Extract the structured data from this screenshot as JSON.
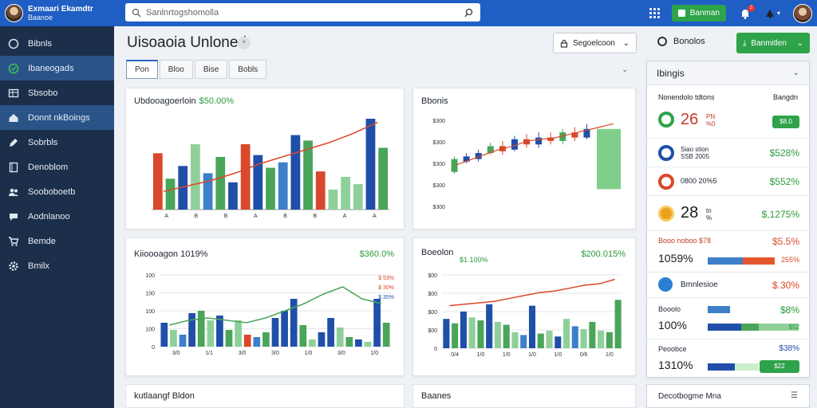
{
  "colors": {
    "blue": "#1f4fa8",
    "green": "#4aa55a",
    "light_green": "#8fd09a",
    "red": "#d9482b",
    "mid_blue": "#3d7fc9",
    "accent": "#2ea34a"
  },
  "header": {
    "brand_name": "Exmaari Ekamdtr",
    "brand_sub": "Baanoe",
    "search_placeholder": "Sanlnrtogshomolla",
    "action_button": "Banman",
    "notification_count": "2",
    "icons": [
      "search-icon",
      "apps-grid-icon",
      "bell-icon",
      "moon-icon"
    ]
  },
  "sidebar": {
    "items": [
      {
        "label": "Bibnls",
        "icon": "circle-icon"
      },
      {
        "label": "Ibaneogads",
        "icon": "check-circle-icon"
      },
      {
        "label": "Sbsobo",
        "icon": "table-icon"
      },
      {
        "label": "Donnt nkBoings",
        "icon": "home-icon"
      },
      {
        "label": "Sobrbls",
        "icon": "pen-icon"
      },
      {
        "label": "Denoblom",
        "icon": "book-icon"
      },
      {
        "label": "Sooboboetb",
        "icon": "users-icon"
      },
      {
        "label": "Aodnlanoo",
        "icon": "chat-icon"
      },
      {
        "label": "Bemde",
        "icon": "cart-icon"
      },
      {
        "label": "Bmilx",
        "icon": "gear-icon"
      }
    ]
  },
  "page": {
    "title": "Uisoaoia Unloned",
    "info_badge": "*",
    "segment_dropdown": "Segoelcoon",
    "export_label": "Bonolos",
    "primary_button": "Banmitlen",
    "tabs": [
      "Pon",
      "Bloo",
      "Bise",
      "Bobls"
    ]
  },
  "cards": {
    "c1": {
      "title": "Ubdooagoerloin",
      "pct": "$50.00%"
    },
    "c2": {
      "title": "Bbonis"
    },
    "c3": {
      "title": "Kiioooagon 1019%",
      "kpi": "$360.0%",
      "legend": [
        "$ 53%",
        "$ 30%",
        "$ 35%"
      ]
    },
    "c4": {
      "title": "Boeolon",
      "subtitle": "$1 100%",
      "kpi": "$200.015%"
    },
    "c5": {
      "title": "kutlaangf Bldon"
    },
    "c6": {
      "title": "Baanes"
    }
  },
  "chart_data": [
    {
      "type": "bar",
      "title": "Ubdooagoerloin",
      "x_tick_labels": [
        "A",
        "B",
        "B",
        "A",
        "B",
        "B",
        "A",
        "A"
      ],
      "series": [
        {
          "values": [
            62,
            34,
            48,
            72,
            40,
            58,
            30,
            72,
            60,
            46,
            52,
            82,
            76,
            42,
            22,
            36,
            28,
            100,
            68
          ]
        }
      ],
      "colors": [
        "#d9482b",
        "#4aa55a",
        "#1f4fa8",
        "#8fd09a",
        "#3d7fc9",
        "#4aa55a",
        "#1f4fa8",
        "#d9482b",
        "#1f4fa8",
        "#4aa55a",
        "#3d7fc9",
        "#1f4fa8",
        "#4aa55a",
        "#d9482b",
        "#8fd09a",
        "#8fd09a",
        "#8fd09a",
        "#1f4fa8",
        "#4aa55a"
      ],
      "line": [
        20,
        26,
        32,
        40,
        50,
        58,
        66,
        74,
        84,
        96
      ],
      "ylim": [
        0,
        100
      ]
    },
    {
      "type": "candlestick",
      "title": "Bbonis",
      "y_tick_labels": [
        "$300",
        "$300",
        "$300",
        "$300",
        "$300"
      ],
      "candles": [
        {
          "o": 40,
          "c": 55,
          "h": 58,
          "l": 38
        },
        {
          "o": 52,
          "c": 58,
          "h": 62,
          "l": 50
        },
        {
          "o": 55,
          "c": 62,
          "h": 66,
          "l": 52
        },
        {
          "o": 62,
          "c": 70,
          "h": 74,
          "l": 60
        },
        {
          "o": 70,
          "c": 64,
          "h": 76,
          "l": 60
        },
        {
          "o": 66,
          "c": 78,
          "h": 82,
          "l": 64
        },
        {
          "o": 78,
          "c": 72,
          "h": 84,
          "l": 68
        },
        {
          "o": 72,
          "c": 80,
          "h": 86,
          "l": 68
        },
        {
          "o": 80,
          "c": 76,
          "h": 86,
          "l": 72
        },
        {
          "o": 76,
          "c": 86,
          "h": 90,
          "l": 72
        },
        {
          "o": 86,
          "c": 80,
          "h": 92,
          "l": 76
        },
        {
          "o": 80,
          "c": 90,
          "h": 96,
          "l": 78
        }
      ],
      "line": [
        48,
        54,
        60,
        66,
        70,
        76,
        78,
        80,
        84,
        88,
        92,
        96
      ],
      "big_green_bar": {
        "from": 20,
        "to": 90
      }
    },
    {
      "type": "bar",
      "title": "Kiioooagon 1019%",
      "y_tick_labels": [
        "100",
        "100",
        "100",
        "100",
        "0"
      ],
      "x_tick_labels": [
        "3/0",
        "1/1",
        "3/0",
        "3/0",
        "1/0",
        "3/0",
        "1/0"
      ],
      "series": [
        {
          "values": [
            20,
            14,
            10,
            28,
            30,
            22,
            26,
            14,
            22,
            10,
            8,
            12,
            24,
            30,
            40,
            18,
            6,
            12,
            24,
            16,
            8,
            6,
            4,
            40,
            20
          ]
        }
      ],
      "colors": [
        "#1f4fa8",
        "#8fd09a",
        "#3d7fc9",
        "#1f4fa8",
        "#4aa55a",
        "#8fd09a",
        "#1f4fa8",
        "#4aa55a",
        "#8fd09a",
        "#d9482b",
        "#3d7fc9",
        "#4aa55a",
        "#1f4fa8",
        "#1f4fa8",
        "#1f4fa8",
        "#4aa55a",
        "#8fd09a",
        "#1f4fa8",
        "#1f4fa8",
        "#8fd09a",
        "#4aa55a",
        "#1f4fa8",
        "#8fd09a",
        "#1f4fa8",
        "#4aa55a"
      ],
      "line": [
        18,
        22,
        24,
        22,
        20,
        24,
        30,
        36,
        44,
        50,
        40,
        36
      ],
      "ylim": [
        0,
        60
      ]
    },
    {
      "type": "bar",
      "title": "Boeolon",
      "y_tick_labels": [
        "$00",
        "$00",
        "$00",
        "$00",
        "0"
      ],
      "x_tick_labels": [
        "0/4",
        "1/0",
        "1/0",
        "1/0",
        "1/0",
        "0/6",
        "1/0"
      ],
      "series": [
        {
          "values": [
            40,
            34,
            50,
            42,
            38,
            60,
            36,
            32,
            22,
            18,
            58,
            20,
            24,
            16,
            40,
            30,
            26,
            36,
            24,
            22,
            66
          ]
        }
      ],
      "colors": [
        "#1f4fa8",
        "#4aa55a",
        "#1f4fa8",
        "#8fd09a",
        "#4aa55a",
        "#1f4fa8",
        "#8fd09a",
        "#4aa55a",
        "#8fd09a",
        "#3d7fc9",
        "#1f4fa8",
        "#4aa55a",
        "#8fd09a",
        "#1f4fa8",
        "#8fd09a",
        "#3d7fc9",
        "#8fd09a",
        "#4aa55a",
        "#8fd09a",
        "#4aa55a",
        "#4aa55a"
      ],
      "line": [
        58,
        60,
        62,
        64,
        68,
        72,
        76,
        78,
        82,
        86,
        88,
        94
      ],
      "ylim": [
        0,
        100
      ]
    }
  ],
  "right_panel": {
    "title": "Ibingis",
    "col_left": "Nonendolo tdtons",
    "col_right": "Bangdn",
    "rows": [
      {
        "big": "26",
        "small": "PN\n%0",
        "pill": "$8.0",
        "ring_color": "#2ea34a"
      },
      {
        "small": "Siao stion\nSSB 2005",
        "val": "$528%",
        "val_color": "#2a9a3a",
        "ring_color": "#1f4fa8"
      },
      {
        "small": "0800 20%5",
        "val": "$552%",
        "val_color": "#2a9a3a",
        "ring_color": "#d9482b"
      },
      {
        "big": "28",
        "small": "tn\n%",
        "val": "$,1275%",
        "val_color": "#2a9a3a",
        "ring_color": "#e8a21c"
      },
      {
        "head": "Booo noboo $78",
        "val": "$5.5%",
        "val_color": "#d9482b",
        "big2": "1059%",
        "val2": "255%",
        "val2_color": "#d9482b"
      },
      {
        "head": "Bmnlesioe",
        "val": "$.30%",
        "val_color": "#d9482b"
      },
      {
        "head": "Booolo",
        "val": "$8%",
        "val_color": "#2a9a3a",
        "big2": "100%",
        "val2": "$52",
        "val2_color": "#fff"
      },
      {
        "head": "Peoobce",
        "val": "$38%",
        "val_color": "#1f4fa8",
        "big2": "1310%",
        "val2": "$22",
        "val2_color": "#fff"
      }
    ],
    "footer": "Decotbogme Mna"
  }
}
